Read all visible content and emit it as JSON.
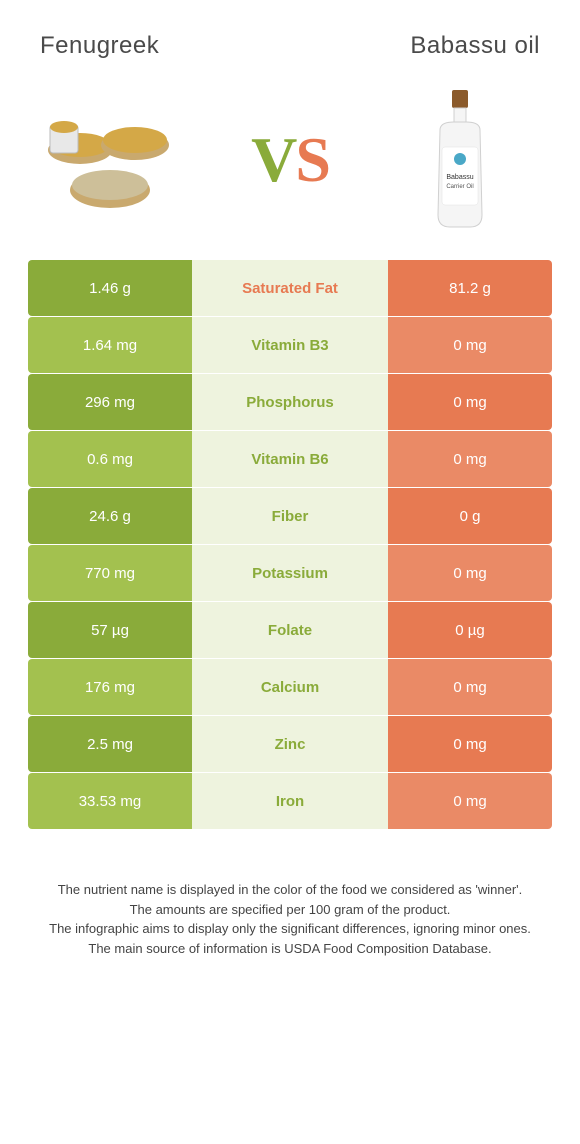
{
  "header": {
    "left_title": "Fenugreek",
    "right_title": "Babassu oil"
  },
  "vs": {
    "v": "V",
    "s": "S"
  },
  "colors": {
    "left_solid": "#8aab3a",
    "left_light": "#a3c14f",
    "right_solid": "#e77a52",
    "right_light": "#ea8a66",
    "mid_light": "#eef3de",
    "mid_label_left": "#8aab3a",
    "mid_label_right": "#e77a52"
  },
  "rows": [
    {
      "left": "1.46 g",
      "label": "Saturated Fat",
      "right": "81.2 g",
      "winner": "right"
    },
    {
      "left": "1.64 mg",
      "label": "Vitamin B3",
      "right": "0 mg",
      "winner": "left"
    },
    {
      "left": "296 mg",
      "label": "Phosphorus",
      "right": "0 mg",
      "winner": "left"
    },
    {
      "left": "0.6 mg",
      "label": "Vitamin B6",
      "right": "0 mg",
      "winner": "left"
    },
    {
      "left": "24.6 g",
      "label": "Fiber",
      "right": "0 g",
      "winner": "left"
    },
    {
      "left": "770 mg",
      "label": "Potassium",
      "right": "0 mg",
      "winner": "left"
    },
    {
      "left": "57 µg",
      "label": "Folate",
      "right": "0 µg",
      "winner": "left"
    },
    {
      "left": "176 mg",
      "label": "Calcium",
      "right": "0 mg",
      "winner": "left"
    },
    {
      "left": "2.5 mg",
      "label": "Zinc",
      "right": "0 mg",
      "winner": "left"
    },
    {
      "left": "33.53 mg",
      "label": "Iron",
      "right": "0 mg",
      "winner": "left"
    }
  ],
  "footer": {
    "line1": "The nutrient name is displayed in the color of the food we considered as 'winner'.",
    "line2": "The amounts are specified per 100 gram of the product.",
    "line3": "The infographic aims to display only the significant differences, ignoring minor ones.",
    "line4": "The main source of information is USDA Food Composition Database."
  },
  "bottle_label": {
    "line1": "Babassu",
    "line2": "Carrier Oil"
  }
}
